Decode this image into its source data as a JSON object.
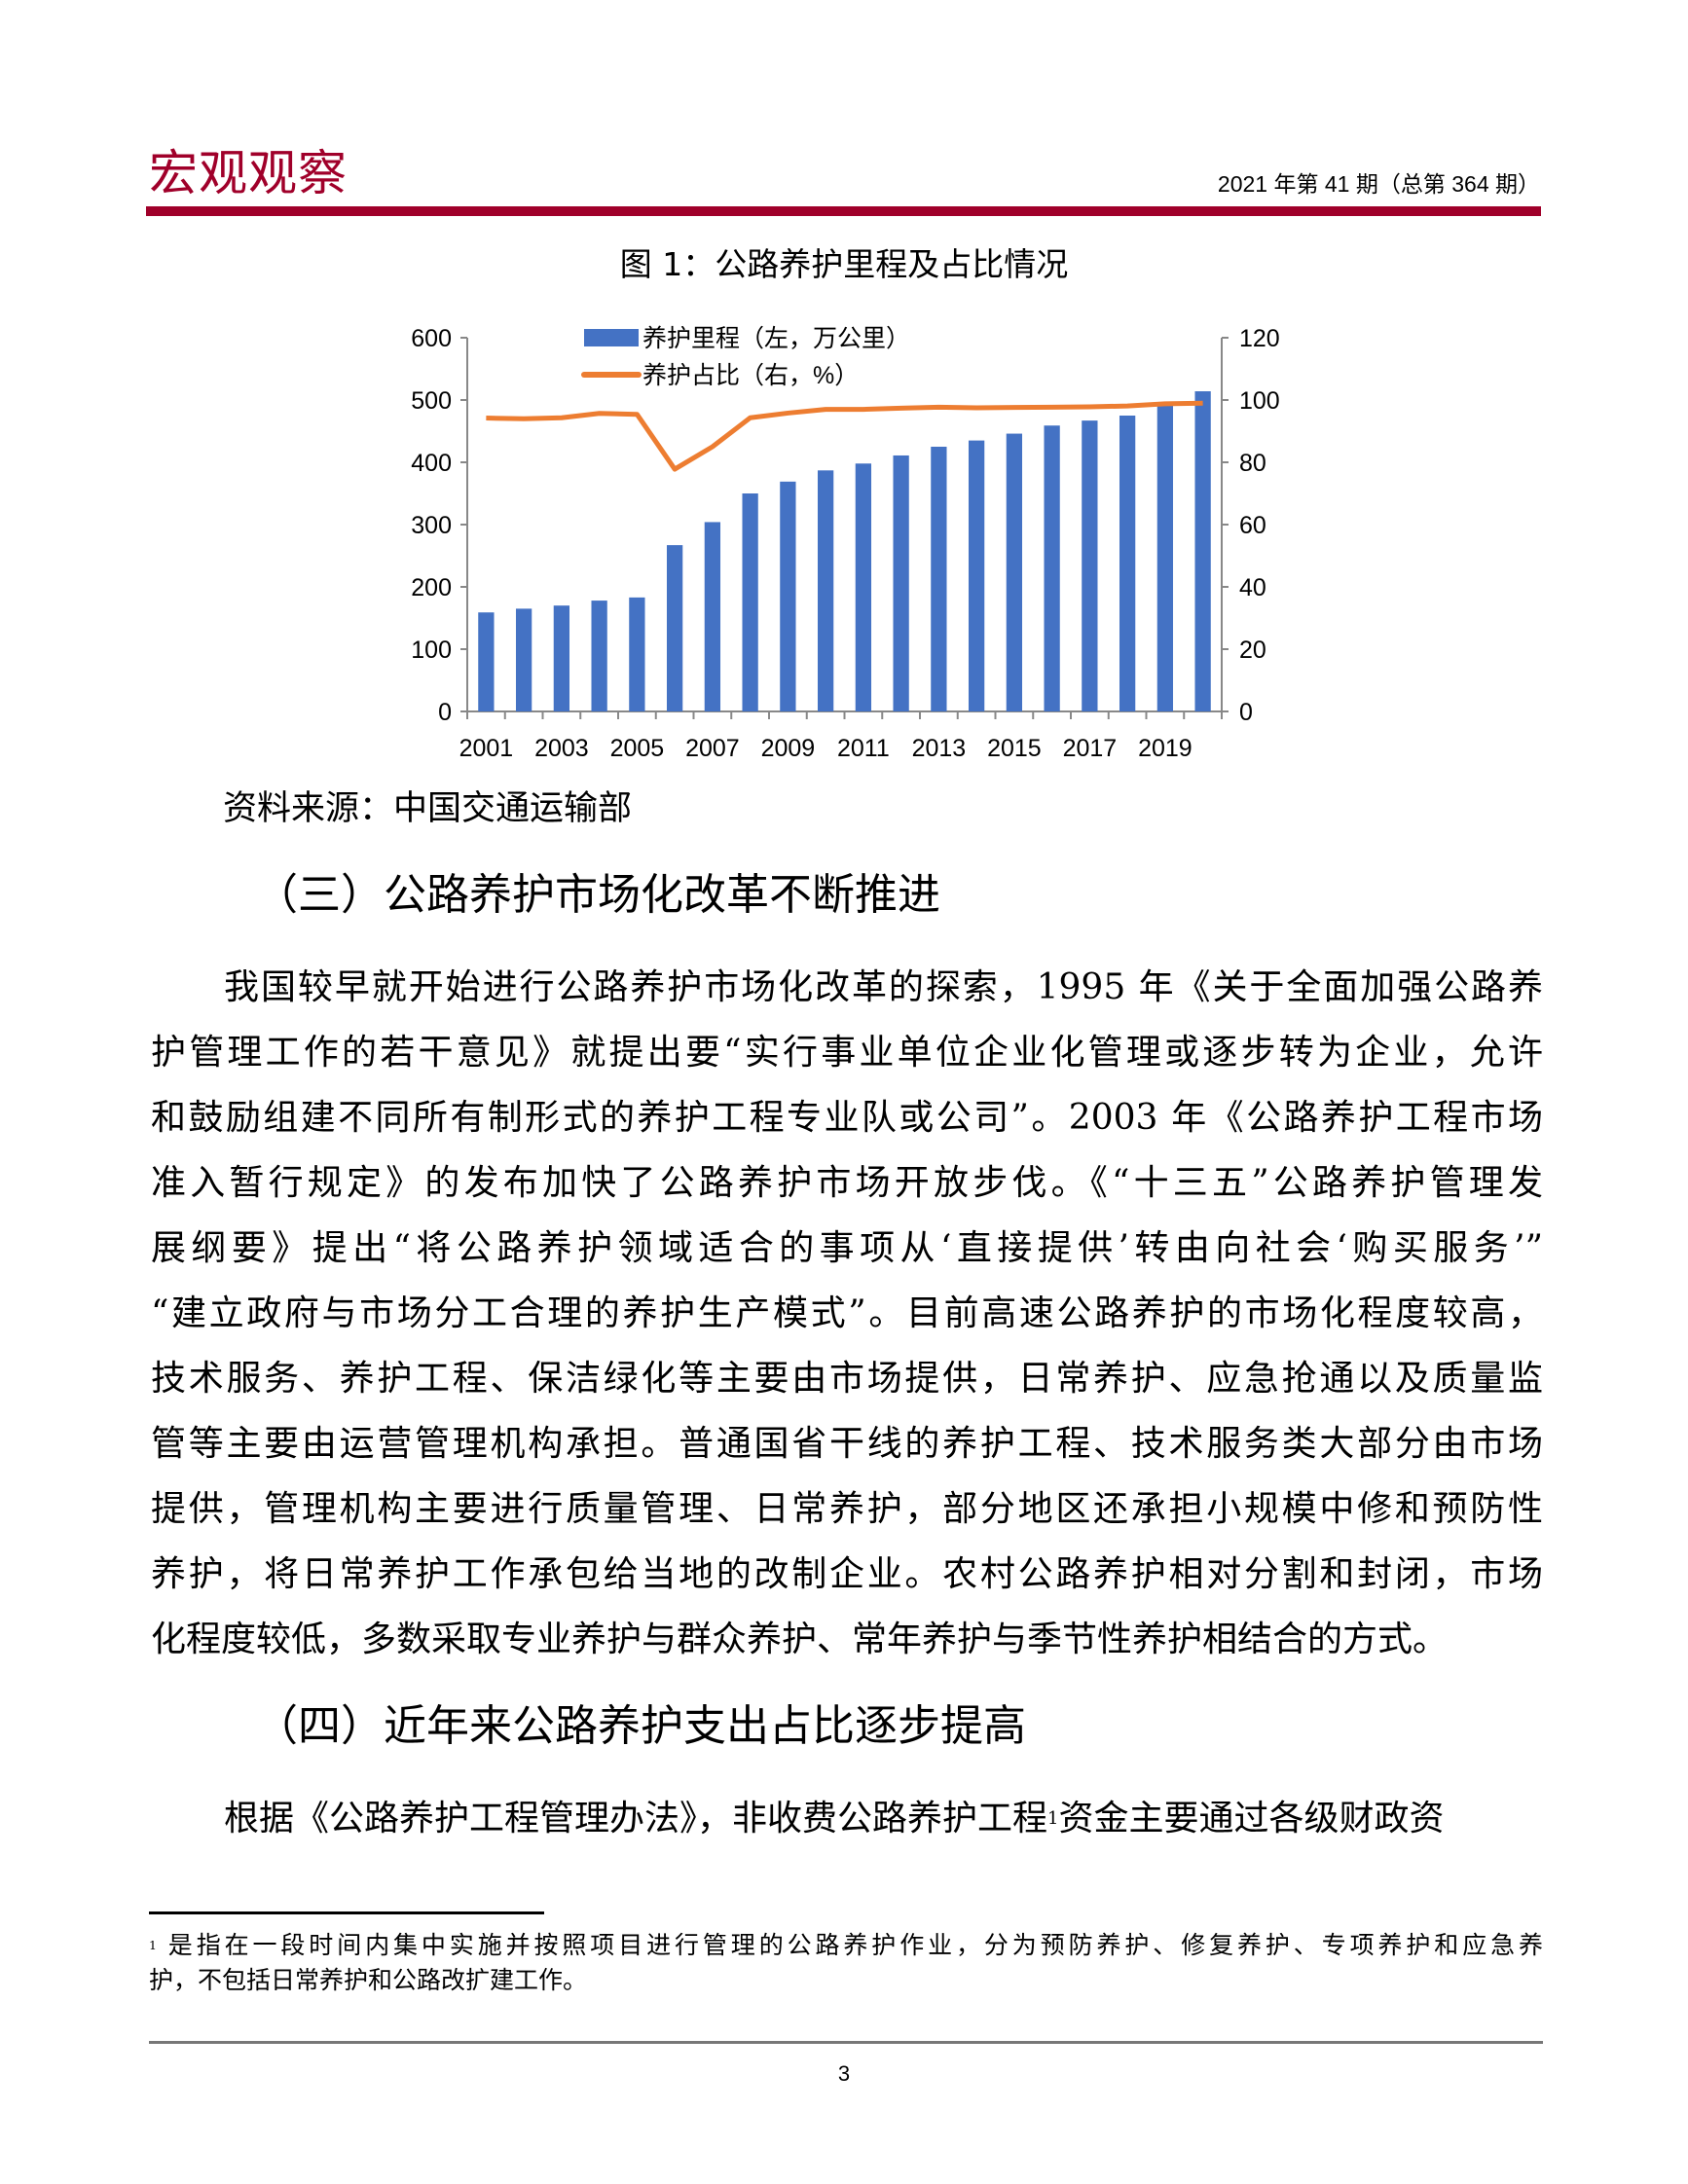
{
  "header": {
    "brand": "宏观观察",
    "issue": "2021 年第 41 期（总第 364 期）",
    "accent_color": "#a0002a"
  },
  "figure": {
    "title": "图 1：公路养护里程及占比情况",
    "source": "资料来源：中国交通运输部"
  },
  "chart_data": {
    "type": "bar+line",
    "title": "图 1：公路养护里程及占比情况",
    "categories": [
      2001,
      2002,
      2003,
      2004,
      2005,
      2006,
      2007,
      2008,
      2009,
      2010,
      2011,
      2012,
      2013,
      2014,
      2015,
      2016,
      2017,
      2018,
      2019,
      2020
    ],
    "x_tick_labels": [
      "2001",
      "2003",
      "2005",
      "2007",
      "2009",
      "2011",
      "2013",
      "2015",
      "2017",
      "2019"
    ],
    "left_axis": {
      "ylim": [
        0,
        600
      ],
      "ticks": [
        "0",
        "100",
        "200",
        "300",
        "400",
        "500",
        "600"
      ]
    },
    "right_axis": {
      "ylim": [
        0,
        120
      ],
      "ticks": [
        "0",
        "20",
        "40",
        "60",
        "80",
        "100",
        "120"
      ]
    },
    "series": [
      {
        "name": "养护里程（左，万公里）",
        "type": "bar",
        "axis": "left",
        "color": "#4472c4",
        "values": [
          159,
          165,
          170,
          178,
          183,
          267,
          304,
          350,
          369,
          387,
          398,
          411,
          425,
          435,
          446,
          459,
          467,
          475,
          493,
          514
        ]
      },
      {
        "name": "养护占比（右，%）",
        "type": "line",
        "axis": "right",
        "color": "#ed7d31",
        "values": [
          94.2,
          94.0,
          94.3,
          95.7,
          95.4,
          77.8,
          85.0,
          94.3,
          95.8,
          97.0,
          97.0,
          97.4,
          97.7,
          97.5,
          97.6,
          97.7,
          97.8,
          98.1,
          98.8,
          99.0
        ]
      }
    ],
    "legend": "top-left",
    "grid": false
  },
  "section3": {
    "heading": "（三）公路养护市场化改革不断推进",
    "lines": [
      "我国较早就开始进行公路养护市场化改革的探索，1995 年《关于全面加强公路养",
      "护管理工作的若干意见》就提出要“实行事业单位企业化管理或逐步转为企业，允许",
      "和鼓励组建不同所有制形式的养护工程专业队或公司”。2003 年《公路养护工程市场",
      "准入暂行规定》的发布加快了公路养护市场开放步伐。《“十三五”公路养护管理发",
      "展纲要》提出“将公路养护领域适合的事项从‘直接提供’转由向社会‘购买服务’”",
      "“建立政府与市场分工合理的养护生产模式”。目前高速公路养护的市场化程度较高，",
      "技术服务、养护工程、保洁绿化等主要由市场提供，日常养护、应急抢通以及质量监",
      "管等主要由运营管理机构承担。普通国省干线的养护工程、技术服务类大部分由市场",
      "提供，管理机构主要进行质量管理、日常养护，部分地区还承担小规模中修和预防性",
      "养护，将日常养护工作承包给当地的改制企业。农村公路养护相对分割和封闭，市场",
      "化程度较低，多数采取专业养护与群众养护、常年养护与季节性养护相结合的方式。"
    ]
  },
  "section4": {
    "heading": "（四）近年来公路养护支出占比逐步提高",
    "line_before_note": "根据《公路养护工程管理办法》，非收费公路养护工程",
    "note_ref": "1",
    "line_after_note": "资金主要通过各级财政资"
  },
  "footnote": {
    "marker": "1",
    "line1": " 是指在一段时间内集中实施并按照项目进行管理的公路养护作业，分为预防养护、修复养护、专项养护和应急养",
    "line2": "护，不包括日常养护和公路改扩建工作。"
  },
  "page_number": "3"
}
